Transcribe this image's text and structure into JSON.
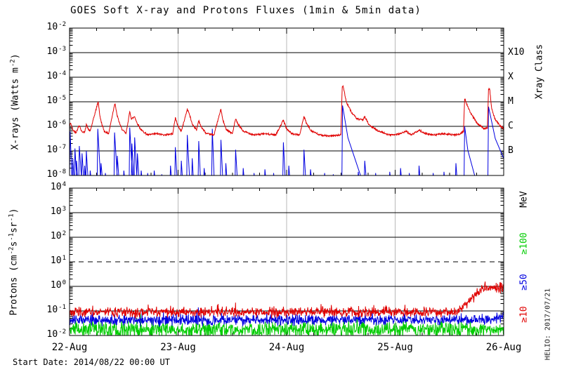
{
  "title": "GOES Soft X-ray and Protons Fluxes   (1min & 5min data)",
  "footer": {
    "start_date": "Start Date: 2014/08/22 00:00 UT"
  },
  "watermark": "HELIO: 2017/07/21",
  "colors": {
    "xray_long": "#e00000",
    "xray_short": "#0000e0",
    "p_ge10": "#e00000",
    "p_ge50": "#0000e0",
    "p_ge100": "#00cc00",
    "day_grid": "#b8b8b8",
    "axis": "#000000"
  },
  "x_axis": {
    "tick_labels": [
      "22-Aug",
      "23-Aug",
      "24-Aug",
      "25-Aug",
      "26-Aug"
    ],
    "days": 4,
    "minor_ticks_per_day": 4
  },
  "chart_data": [
    {
      "id": "xray",
      "type": "line",
      "ylabel_parts": [
        [
          "X-rays (Watts m",
          0
        ],
        [
          "-2",
          1
        ],
        [
          ")",
          0
        ]
      ],
      "y_log_range": [
        -8,
        -2
      ],
      "y_tick_exponents": [
        -2,
        -3,
        -4,
        -5,
        -6,
        -7,
        -8
      ],
      "grid_solid_logs": [
        -3,
        -4,
        -5,
        -6,
        -7
      ],
      "grid_dashed_logs": [],
      "right_axis_title": "Xray Class",
      "right_labels": [
        {
          "label": "X10",
          "log": -3,
          "color": "#000000"
        },
        {
          "label": "X",
          "log": -4,
          "color": "#000000"
        },
        {
          "label": "M",
          "log": -5,
          "color": "#000000"
        },
        {
          "label": "C",
          "log": -6,
          "color": "#000000"
        },
        {
          "label": "B",
          "log": -7,
          "color": "#000000"
        }
      ],
      "series": [
        {
          "name": "xray-short-wave",
          "color": "#0000e0",
          "style": "spikes",
          "baseline_log": -8.45,
          "rise_days": 0.006,
          "spikes": [
            [
              0.005,
              -6.2,
              0.02
            ],
            [
              0.03,
              -7.3,
              0.015
            ],
            [
              0.05,
              -6.9,
              0.02
            ],
            [
              0.065,
              -7.4,
              0.015
            ],
            [
              0.09,
              -6.8,
              0.025
            ],
            [
              0.115,
              -7.1,
              0.02
            ],
            [
              0.14,
              -7.6,
              0.015
            ],
            [
              0.155,
              -7.0,
              0.02
            ],
            [
              0.19,
              -7.8,
              0.015
            ],
            [
              0.26,
              -6.1,
              0.03
            ],
            [
              0.29,
              -7.5,
              0.02
            ],
            [
              0.33,
              -7.9,
              0.015
            ],
            [
              0.415,
              -6.25,
              0.03
            ],
            [
              0.44,
              -7.2,
              0.02
            ],
            [
              0.5,
              -7.8,
              0.015
            ],
            [
              0.555,
              -6.05,
              0.03
            ],
            [
              0.575,
              -6.7,
              0.02
            ],
            [
              0.6,
              -6.45,
              0.025
            ],
            [
              0.625,
              -7.1,
              0.02
            ],
            [
              0.66,
              -7.8,
              0.015
            ],
            [
              0.72,
              -7.9,
              0.015
            ],
            [
              0.78,
              -7.8,
              0.015
            ],
            [
              0.85,
              -7.95,
              0.012
            ],
            [
              0.93,
              -7.6,
              0.015
            ],
            [
              0.975,
              -6.85,
              0.02
            ],
            [
              1.03,
              -7.4,
              0.015
            ],
            [
              1.085,
              -6.35,
              0.025
            ],
            [
              1.13,
              -7.3,
              0.015
            ],
            [
              1.19,
              -6.6,
              0.02
            ],
            [
              1.24,
              -7.7,
              0.015
            ],
            [
              1.315,
              -6.1,
              0.02
            ],
            [
              1.395,
              -6.55,
              0.02
            ],
            [
              1.44,
              -7.5,
              0.015
            ],
            [
              1.53,
              -6.95,
              0.02
            ],
            [
              1.6,
              -7.7,
              0.015
            ],
            [
              1.7,
              -7.9,
              0.012
            ],
            [
              1.8,
              -7.75,
              0.015
            ],
            [
              1.88,
              -7.9,
              0.012
            ],
            [
              1.97,
              -6.65,
              0.02
            ],
            [
              2.02,
              -7.6,
              0.015
            ],
            [
              2.16,
              -6.95,
              0.02
            ],
            [
              2.22,
              -7.75,
              0.015
            ],
            [
              2.35,
              -7.9,
              0.012
            ],
            [
              2.43,
              -7.95,
              0.012
            ],
            [
              2.515,
              -5.15,
              0.2
            ],
            [
              2.66,
              -7.85,
              0.015
            ],
            [
              2.72,
              -7.4,
              0.02
            ],
            [
              2.82,
              -7.9,
              0.012
            ],
            [
              2.95,
              -7.85,
              0.015
            ],
            [
              3.05,
              -7.7,
              0.015
            ],
            [
              3.13,
              -7.9,
              0.012
            ],
            [
              3.22,
              -7.6,
              0.015
            ],
            [
              3.35,
              -7.9,
              0.012
            ],
            [
              3.45,
              -7.85,
              0.012
            ],
            [
              3.56,
              -7.5,
              0.015
            ],
            [
              3.64,
              -6.0,
              0.12
            ],
            [
              3.86,
              -5.2,
              0.25
            ]
          ]
        },
        {
          "name": "xray-long-wave",
          "color": "#e00000",
          "style": "keypoints",
          "noise_amp": 0.035,
          "seed": 42,
          "keypoints": [
            [
              0.0,
              -6.0
            ],
            [
              0.01,
              -5.85
            ],
            [
              0.03,
              -6.15
            ],
            [
              0.06,
              -6.25
            ],
            [
              0.09,
              -5.95
            ],
            [
              0.11,
              -6.2
            ],
            [
              0.14,
              -6.25
            ],
            [
              0.155,
              -5.9
            ],
            [
              0.17,
              -6.1
            ],
            [
              0.19,
              -6.2
            ],
            [
              0.26,
              -5.05
            ],
            [
              0.265,
              -5.0
            ],
            [
              0.28,
              -5.6
            ],
            [
              0.3,
              -5.95
            ],
            [
              0.32,
              -6.2
            ],
            [
              0.36,
              -6.3
            ],
            [
              0.415,
              -5.1
            ],
            [
              0.42,
              -5.08
            ],
            [
              0.435,
              -5.5
            ],
            [
              0.455,
              -5.8
            ],
            [
              0.48,
              -6.1
            ],
            [
              0.52,
              -6.3
            ],
            [
              0.555,
              -5.4
            ],
            [
              0.57,
              -5.7
            ],
            [
              0.6,
              -5.6
            ],
            [
              0.62,
              -5.85
            ],
            [
              0.66,
              -6.15
            ],
            [
              0.72,
              -6.35
            ],
            [
              0.8,
              -6.3
            ],
            [
              0.88,
              -6.35
            ],
            [
              0.95,
              -6.3
            ],
            [
              0.975,
              -5.65
            ],
            [
              1.0,
              -6.0
            ],
            [
              1.03,
              -6.2
            ],
            [
              1.085,
              -5.3
            ],
            [
              1.1,
              -5.45
            ],
            [
              1.13,
              -5.9
            ],
            [
              1.17,
              -6.15
            ],
            [
              1.19,
              -5.75
            ],
            [
              1.21,
              -6.0
            ],
            [
              1.26,
              -6.3
            ],
            [
              1.33,
              -6.35
            ],
            [
              1.395,
              -5.3
            ],
            [
              1.41,
              -5.7
            ],
            [
              1.44,
              -6.1
            ],
            [
              1.5,
              -6.3
            ],
            [
              1.53,
              -5.7
            ],
            [
              1.55,
              -5.9
            ],
            [
              1.6,
              -6.2
            ],
            [
              1.7,
              -6.35
            ],
            [
              1.8,
              -6.3
            ],
            [
              1.9,
              -6.35
            ],
            [
              1.97,
              -5.75
            ],
            [
              2.0,
              -6.1
            ],
            [
              2.05,
              -6.3
            ],
            [
              2.12,
              -6.35
            ],
            [
              2.16,
              -5.6
            ],
            [
              2.18,
              -5.85
            ],
            [
              2.22,
              -6.15
            ],
            [
              2.3,
              -6.35
            ],
            [
              2.4,
              -6.4
            ],
            [
              2.5,
              -6.35
            ],
            [
              2.512,
              -4.4
            ],
            [
              2.52,
              -4.35
            ],
            [
              2.55,
              -5.0
            ],
            [
              2.6,
              -5.45
            ],
            [
              2.65,
              -5.7
            ],
            [
              2.7,
              -5.75
            ],
            [
              2.72,
              -5.6
            ],
            [
              2.76,
              -5.95
            ],
            [
              2.85,
              -6.2
            ],
            [
              2.95,
              -6.35
            ],
            [
              3.05,
              -6.3
            ],
            [
              3.1,
              -6.2
            ],
            [
              3.15,
              -6.35
            ],
            [
              3.22,
              -6.15
            ],
            [
              3.28,
              -6.3
            ],
            [
              3.35,
              -6.35
            ],
            [
              3.45,
              -6.3
            ],
            [
              3.55,
              -6.35
            ],
            [
              3.6,
              -6.3
            ],
            [
              3.63,
              -6.2
            ],
            [
              3.64,
              -4.85
            ],
            [
              3.66,
              -5.1
            ],
            [
              3.7,
              -5.5
            ],
            [
              3.76,
              -5.9
            ],
            [
              3.82,
              -6.1
            ],
            [
              3.85,
              -6.05
            ],
            [
              3.86,
              -4.5
            ],
            [
              3.87,
              -4.45
            ],
            [
              3.89,
              -5.3
            ],
            [
              3.92,
              -5.7
            ],
            [
              3.96,
              -5.95
            ],
            [
              4.0,
              -6.1
            ]
          ]
        }
      ]
    },
    {
      "id": "protons",
      "type": "line",
      "ylabel_parts": [
        [
          "Protons (cm",
          0
        ],
        [
          "-2",
          1
        ],
        [
          "s",
          0
        ],
        [
          "-1",
          1
        ],
        [
          "sr",
          0
        ],
        [
          "-1",
          1
        ],
        [
          ")",
          0
        ]
      ],
      "y_log_range": [
        -2,
        4
      ],
      "y_tick_exponents": [
        4,
        3,
        2,
        1,
        0,
        -1,
        -2
      ],
      "grid_solid_logs": [
        3,
        2,
        0,
        -1
      ],
      "grid_dashed_logs": [
        1
      ],
      "right_axis_title": "MeV",
      "right_labels": [
        {
          "label": "≥100",
          "center_log": 1.74,
          "color": "#00cc00"
        },
        {
          "label": "≥50",
          "center_log": 0.17,
          "color": "#0000e0"
        },
        {
          "label": "≥10",
          "center_log": -1.14,
          "color": "#e00000"
        }
      ],
      "series": [
        {
          "name": "protons-ge100MeV",
          "color": "#00cc00",
          "style": "band",
          "seed": 99,
          "amp": 0.3,
          "base_keypoints": [
            [
              0,
              -1.77
            ],
            [
              4,
              -1.77
            ]
          ]
        },
        {
          "name": "protons-ge50MeV",
          "color": "#0000e0",
          "style": "band",
          "seed": 13,
          "amp": 0.2,
          "base_keypoints": [
            [
              0,
              -1.37
            ],
            [
              3.88,
              -1.37
            ],
            [
              3.95,
              -1.28
            ],
            [
              4,
              -1.2
            ]
          ]
        },
        {
          "name": "protons-ge10MeV",
          "color": "#e00000",
          "style": "band",
          "seed": 7,
          "amp": 0.18,
          "base_keypoints": [
            [
              0,
              -1.05
            ],
            [
              3.55,
              -1.05
            ],
            [
              3.62,
              -0.88
            ],
            [
              3.72,
              -0.42
            ],
            [
              3.8,
              -0.12
            ],
            [
              3.88,
              -0.02
            ],
            [
              3.94,
              -0.1
            ],
            [
              4,
              -0.03
            ]
          ]
        }
      ]
    }
  ]
}
